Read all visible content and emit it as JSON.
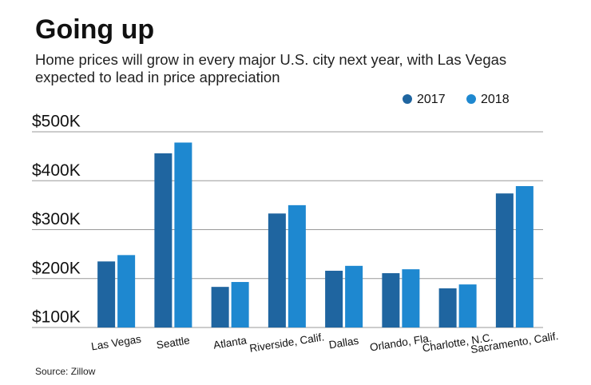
{
  "chart_data": {
    "type": "bar",
    "title": "Going up",
    "subtitle": "Home prices will grow in every major U.S. city next year, with Las Vegas expected to lead in price appreciation",
    "source": "Source: Zillow",
    "categories": [
      "Las Vegas",
      "Seattle",
      "Atlanta",
      "Riverside, Calif.",
      "Dallas",
      "Orlando, Fla.",
      "Charlotte, N.C.",
      "Sacramento, Calif."
    ],
    "series": [
      {
        "name": "2017",
        "color": "#1f65a0",
        "values": [
          235000,
          456000,
          183000,
          333000,
          216000,
          211000,
          180000,
          374000
        ]
      },
      {
        "name": "2018",
        "color": "#1e88d0",
        "values": [
          248000,
          478000,
          193000,
          350000,
          226000,
          219000,
          188000,
          389000
        ]
      }
    ],
    "ylim": [
      100000,
      500000
    ],
    "yticks": [
      {
        "value": 100000,
        "label": "$100K"
      },
      {
        "value": 200000,
        "label": "$200K"
      },
      {
        "value": 300000,
        "label": "$300K"
      },
      {
        "value": 400000,
        "label": "$400K"
      },
      {
        "value": 500000,
        "label": "$500K"
      }
    ],
    "grid": true,
    "legend": "top-right"
  }
}
